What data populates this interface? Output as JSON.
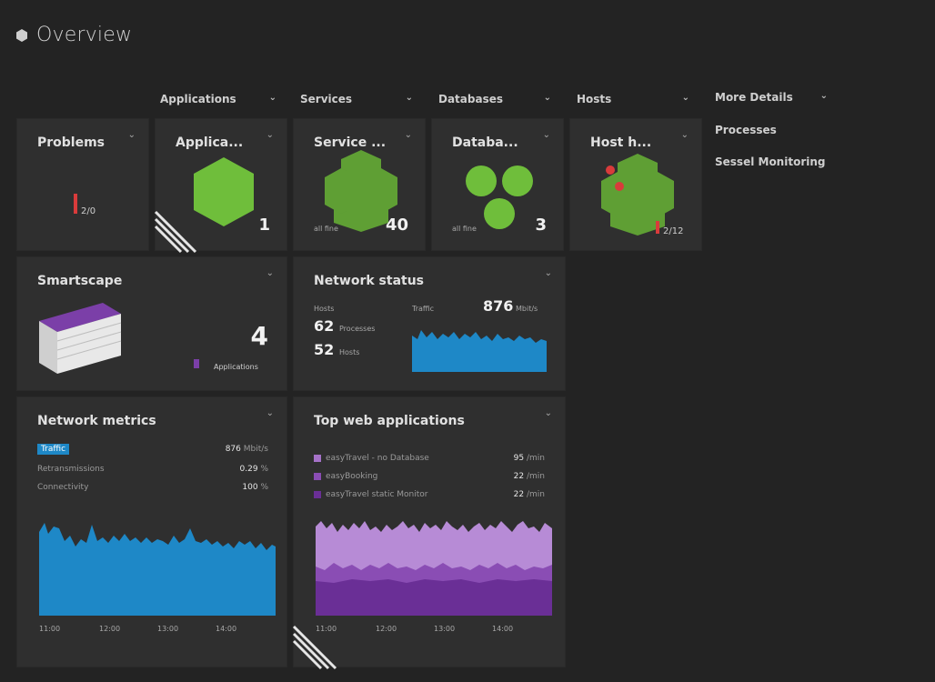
{
  "header": {
    "title": "Overview",
    "icon": "tile-icon"
  },
  "column_headers": [
    "Applications",
    "Services",
    "Databases",
    "Hosts",
    "More Details"
  ],
  "side_links": [
    "Processes",
    "Sessel Monitoring"
  ],
  "tiles": {
    "problems": {
      "title": "Problems",
      "count": "2/0"
    },
    "applications": {
      "title": "Applica...",
      "count": "1",
      "state": "ok"
    },
    "services": {
      "title": "Service ...",
      "count": "40",
      "state": "ok"
    },
    "databases": {
      "title": "Databa...",
      "count": "3",
      "state": "ok"
    },
    "hosts": {
      "title": "Host h...",
      "count": "2/12"
    },
    "smartscape": {
      "title": "Smartscape",
      "count": "4",
      "legend": "Applications"
    },
    "network_status": {
      "title": "Network status",
      "hosts_label": "Hosts",
      "hosts_value": "62",
      "hosts_sub": "Processes",
      "proc_value": "52",
      "proc_sub": "Hosts",
      "traffic_label": "Traffic",
      "traffic_value": "876",
      "traffic_unit": "Mbit/s"
    },
    "network_metrics": {
      "title": "Network metrics",
      "rows": [
        {
          "label": "Traffic",
          "value": "876",
          "unit": "Mbit/s"
        },
        {
          "label": "Retransmissions",
          "value": "0.29",
          "unit": "%"
        },
        {
          "label": "Connectivity",
          "value": "100",
          "unit": "%"
        }
      ],
      "x_ticks": [
        "11:00",
        "12:00",
        "13:00",
        "14:00"
      ]
    },
    "top_web_apps": {
      "title": "Top web applications",
      "rows": [
        {
          "label": "easyTravel - no Database",
          "value": "95",
          "unit": "/min",
          "color": "#a572c8"
        },
        {
          "label": "easyBooking",
          "value": "22",
          "unit": "/min",
          "color": "#8a4db4"
        },
        {
          "label": "easyTravel static Monitor",
          "value": "22",
          "unit": "/min",
          "color": "#6a2f96"
        }
      ],
      "x_ticks": [
        "11:00",
        "12:00",
        "13:00",
        "14:00"
      ]
    }
  },
  "colors": {
    "background": "#232323",
    "tile": "#2f2f2f",
    "green": "#6fbe3b",
    "blue": "#1e88c7",
    "purple": "#8a4db4",
    "red": "#d93b3b"
  }
}
